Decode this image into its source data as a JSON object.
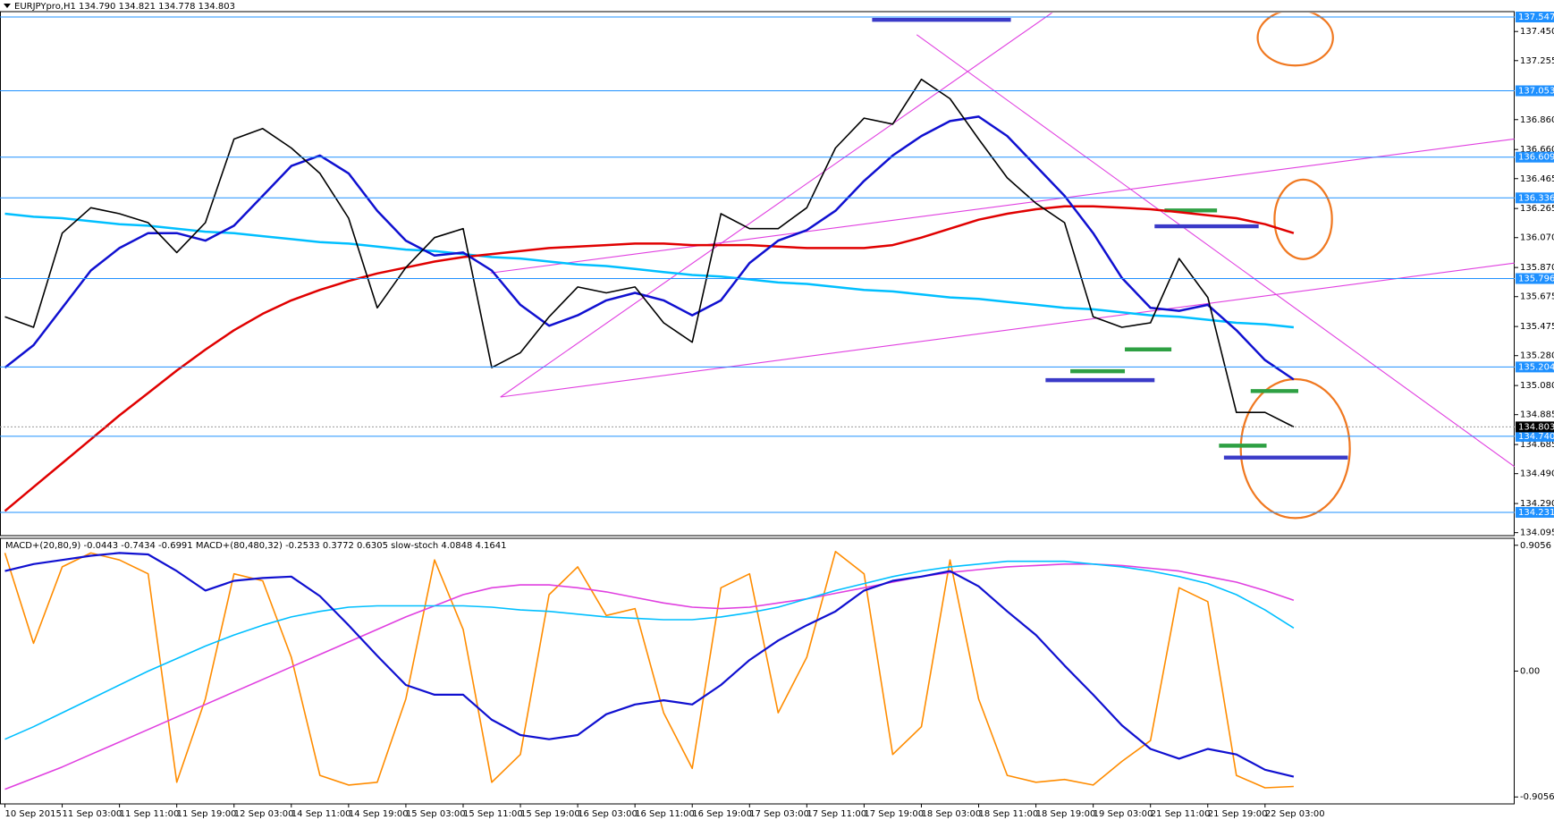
{
  "chart_data": [
    {
      "type": "line",
      "title": "EURJPYpro,H1  134.790 134.821 134.778 134.803",
      "categories": [
        "10 Sep 2015",
        null,
        "11 Sep 03:00",
        null,
        "11 Sep 11:00",
        null,
        "11 Sep 19:00",
        null,
        "12 Sep 03:00",
        null,
        "14 Sep 11:00",
        null,
        "14 Sep 19:00",
        null,
        "15 Sep 03:00",
        null,
        "15 Sep 11:00",
        null,
        "15 Sep 19:00",
        null,
        "16 Sep 03:00",
        null,
        "16 Sep 11:00",
        null,
        "16 Sep 19:00",
        null,
        "17 Sep 03:00",
        null,
        "17 Sep 11:00",
        null,
        "17 Sep 19:00",
        null,
        "18 Sep 03:00",
        null,
        "18 Sep 11:00",
        null,
        "18 Sep 19:00",
        null,
        "19 Sep 03:00",
        null,
        "21 Sep 11:00",
        null,
        "21 Sep 19:00",
        null,
        "22 Sep 03:00",
        null
      ],
      "ylim": [
        134.075,
        137.583
      ],
      "yticks": [
        {
          "value": 137.45,
          "label": "137.450"
        },
        137.255,
        {
          "value": 136.86,
          "label": "136.860"
        },
        {
          "value": 136.66,
          "label": "136.660"
        },
        136.465,
        136.265,
        {
          "value": 136.07,
          "label": "136.070"
        },
        {
          "value": 135.87,
          "label": "135.870"
        },
        135.675,
        135.475,
        {
          "value": 135.28,
          "label": "135.280"
        },
        {
          "value": 135.08,
          "label": "135.080"
        },
        134.885,
        134.685,
        {
          "value": 134.49,
          "label": "134.490"
        },
        {
          "value": 134.29,
          "label": "134.290"
        },
        134.095
      ],
      "levels": [
        137.547,
        137.053,
        136.609,
        136.336,
        135.796,
        135.204,
        {
          "value": 134.74,
          "label": "134.740"
        },
        134.231
      ],
      "level_color": "#1e90ff",
      "last_price": 134.803,
      "series": [
        {
          "color": "#00bfff",
          "values": [
            136.23,
            136.21,
            136.2,
            136.18,
            136.16,
            136.15,
            136.13,
            136.11,
            136.1,
            136.08,
            136.06,
            136.04,
            136.03,
            136.01,
            135.99,
            135.98,
            135.96,
            135.94,
            135.93,
            135.91,
            135.89,
            135.88,
            135.86,
            135.84,
            135.82,
            135.81,
            135.79,
            135.77,
            135.76,
            135.74,
            135.72,
            135.71,
            135.69,
            135.67,
            135.66,
            135.64,
            135.62,
            135.6,
            135.59,
            135.57,
            135.55,
            135.54,
            135.52,
            135.5,
            135.49,
            135.47
          ]
        },
        {
          "color": "#e00000",
          "values": [
            134.24,
            134.4,
            134.56,
            134.72,
            134.88,
            135.03,
            135.18,
            135.32,
            135.45,
            135.56,
            135.65,
            135.72,
            135.78,
            135.83,
            135.87,
            135.91,
            135.94,
            135.96,
            135.98,
            136.0,
            136.01,
            136.02,
            136.03,
            136.03,
            136.02,
            136.02,
            136.02,
            136.01,
            136.0,
            136.0,
            136.0,
            136.02,
            136.07,
            136.13,
            136.19,
            136.23,
            136.26,
            136.28,
            136.28,
            136.27,
            136.26,
            136.24,
            136.22,
            136.2,
            136.16,
            136.1
          ]
        },
        {
          "color": "#1010d0",
          "values": [
            135.2,
            135.35,
            135.6,
            135.85,
            136.0,
            136.1,
            136.1,
            136.05,
            136.15,
            136.35,
            136.55,
            136.62,
            136.5,
            136.25,
            136.05,
            135.95,
            135.97,
            135.85,
            135.62,
            135.48,
            135.55,
            135.65,
            135.7,
            135.65,
            135.55,
            135.65,
            135.9,
            136.05,
            136.12,
            136.25,
            136.45,
            136.62,
            136.75,
            136.85,
            136.88,
            136.75,
            136.55,
            136.35,
            136.1,
            135.8,
            135.6,
            135.58,
            135.62,
            135.45,
            135.25,
            135.12
          ]
        },
        {
          "color": "#000000",
          "values": [
            135.54,
            135.47,
            136.1,
            136.27,
            136.23,
            136.17,
            135.97,
            136.17,
            136.73,
            136.8,
            136.67,
            136.5,
            136.2,
            135.6,
            135.87,
            136.07,
            136.13,
            135.2,
            135.3,
            135.54,
            135.74,
            135.7,
            135.74,
            135.5,
            135.37,
            136.23,
            136.13,
            136.13,
            136.27,
            136.67,
            136.87,
            136.83,
            137.13,
            137.0,
            136.73,
            136.47,
            136.3,
            136.17,
            135.54,
            135.47,
            135.5,
            135.93,
            135.67,
            134.9,
            134.9,
            134.803
          ]
        }
      ]
    },
    {
      "type": "line",
      "title": "MACD+(20,80,9) -0.0443 -0.7434 -0.6991  MACD+(80,480,32) -0.2533 0.3772 0.6305  slow-stoch 4.0848 4.1641",
      "ylim": [
        -0.9555,
        0.9555
      ],
      "yticks": [
        0.9056,
        {
          "value": 0,
          "label": "0.00"
        },
        -0.9056
      ],
      "series": [
        {
          "color": "#ff8c00",
          "values": [
            0.85,
            0.2,
            0.75,
            0.85,
            0.8,
            0.7,
            -0.8,
            -0.2,
            0.7,
            0.65,
            0.1,
            -0.75,
            -0.82,
            -0.8,
            -0.2,
            0.8,
            0.3,
            -0.8,
            -0.6,
            0.55,
            0.75,
            0.4,
            0.45,
            -0.3,
            -0.7,
            0.6,
            0.7,
            -0.3,
            0.1,
            0.86,
            0.7,
            -0.6,
            -0.4,
            0.8,
            -0.2,
            -0.75,
            -0.8,
            -0.78,
            -0.82,
            -0.65,
            -0.5,
            0.6,
            0.5,
            -0.75,
            -0.84,
            -0.83
          ]
        },
        {
          "color": "#e040e0",
          "values": [
            -0.85,
            -0.77,
            -0.69,
            -0.6,
            -0.51,
            -0.42,
            -0.33,
            -0.24,
            -0.15,
            -0.06,
            0.03,
            0.12,
            0.21,
            0.3,
            0.39,
            0.47,
            0.55,
            0.6,
            0.62,
            0.62,
            0.6,
            0.57,
            0.53,
            0.49,
            0.46,
            0.45,
            0.46,
            0.49,
            0.52,
            0.56,
            0.6,
            0.64,
            0.68,
            0.71,
            0.73,
            0.75,
            0.76,
            0.77,
            0.77,
            0.76,
            0.74,
            0.72,
            0.68,
            0.64,
            0.58,
            0.51
          ]
        },
        {
          "color": "#00bfff",
          "values": [
            -0.49,
            -0.4,
            -0.3,
            -0.2,
            -0.1,
            0.0,
            0.09,
            0.18,
            0.26,
            0.33,
            0.39,
            0.43,
            0.46,
            0.47,
            0.47,
            0.47,
            0.47,
            0.46,
            0.44,
            0.43,
            0.41,
            0.39,
            0.38,
            0.37,
            0.37,
            0.39,
            0.42,
            0.46,
            0.52,
            0.58,
            0.63,
            0.68,
            0.72,
            0.75,
            0.77,
            0.79,
            0.79,
            0.79,
            0.77,
            0.75,
            0.72,
            0.68,
            0.63,
            0.55,
            0.44,
            0.31
          ]
        },
        {
          "color": "#1010d0",
          "values": [
            0.72,
            0.77,
            0.8,
            0.83,
            0.85,
            0.84,
            0.72,
            0.58,
            0.65,
            0.67,
            0.68,
            0.54,
            0.33,
            0.11,
            -0.1,
            -0.17,
            -0.17,
            -0.35,
            -0.46,
            -0.49,
            -0.46,
            -0.31,
            -0.24,
            -0.21,
            -0.24,
            -0.1,
            0.08,
            0.22,
            0.33,
            0.43,
            0.58,
            0.65,
            0.68,
            0.72,
            0.61,
            0.43,
            0.26,
            0.04,
            -0.17,
            -0.39,
            -0.56,
            -0.63,
            -0.56,
            -0.6,
            -0.71,
            -0.76
          ]
        }
      ]
    }
  ]
}
